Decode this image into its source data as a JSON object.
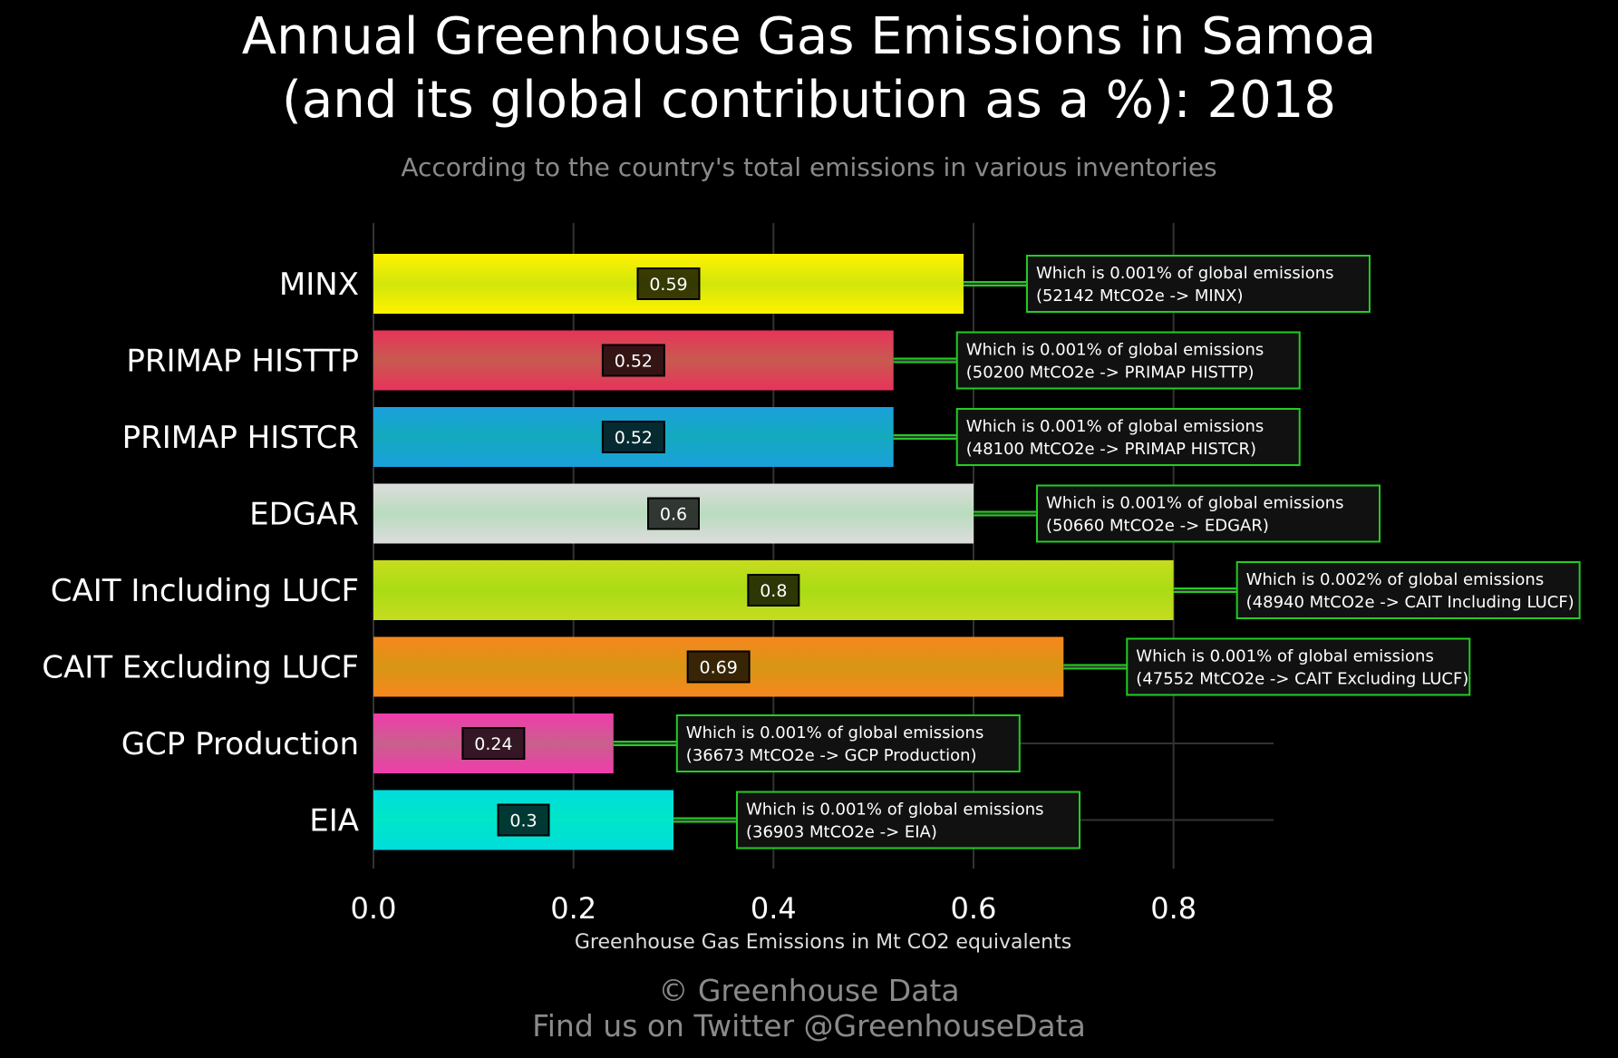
{
  "title_line1": "Annual Greenhouse Gas Emissions in Samoa",
  "title_line2": "(and its global contribution as a %): 2018",
  "subtitle": "According to the country's total emissions in various inventories",
  "footer_line1": "© Greenhouse Data",
  "footer_line2": "Find us on Twitter @GreenhouseData",
  "chart_data": {
    "type": "bar",
    "orientation": "horizontal",
    "xlabel": "Greenhouse Gas Emissions in Mt CO2 equivalents",
    "xlim": [
      0,
      0.9
    ],
    "xticks": [
      0.0,
      0.2,
      0.4,
      0.6,
      0.8
    ],
    "xtick_labels": [
      "0.0",
      "0.2",
      "0.4",
      "0.6",
      "0.8"
    ],
    "grid": true,
    "categories": [
      "MINX",
      "PRIMAP HISTTP",
      "PRIMAP HISTCR",
      "EDGAR",
      "CAIT Including LUCF",
      "CAIT Excluding LUCF",
      "GCP Production",
      "EIA"
    ],
    "values": [
      0.59,
      0.52,
      0.52,
      0.6,
      0.8,
      0.69,
      0.24,
      0.3
    ],
    "value_labels": [
      "0.59",
      "0.52",
      "0.52",
      "0.6",
      "0.8",
      "0.69",
      "0.24",
      "0.3"
    ],
    "colors": [
      "#fff200",
      "#e8335a",
      "#1aa0dc",
      "#dcdcdc",
      "#c6dc1e",
      "#f7871e",
      "#f03cac",
      "#00dcdc"
    ],
    "mid_colors": [
      "#d2e60a",
      "#c85a50",
      "#14aabe",
      "#b9dcbe",
      "#aadc14",
      "#d79614",
      "#c8608c",
      "#00e6c8"
    ],
    "annotations": [
      {
        "line1": "Which is 0.001% of global emissions",
        "line2": "(52142 MtCO2e -> MINX)"
      },
      {
        "line1": "Which is 0.001% of global emissions",
        "line2": "(50200 MtCO2e -> PRIMAP HISTTP)"
      },
      {
        "line1": "Which is 0.001% of global emissions",
        "line2": "(48100 MtCO2e -> PRIMAP HISTCR)"
      },
      {
        "line1": "Which is 0.001% of global emissions",
        "line2": "(50660 MtCO2e -> EDGAR)"
      },
      {
        "line1": "Which is 0.002% of global emissions",
        "line2": "(48940 MtCO2e -> CAIT Including LUCF)"
      },
      {
        "line1": "Which is 0.001% of global emissions",
        "line2": "(47552 MtCO2e -> CAIT Excluding LUCF)"
      },
      {
        "line1": "Which is 0.001% of global emissions",
        "line2": "(36673 MtCO2e -> GCP Production)"
      },
      {
        "line1": "Which is 0.001% of global emissions",
        "line2": "(36903 MtCO2e -> EIA)"
      }
    ],
    "annotation_border_color": "#22cc22",
    "grid_color": "#333333"
  }
}
